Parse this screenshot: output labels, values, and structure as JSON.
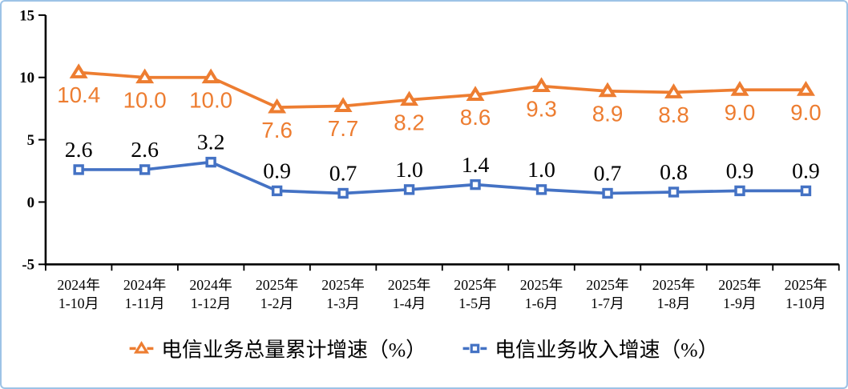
{
  "chart_data": {
    "type": "line",
    "title": "",
    "xlabel": "",
    "ylabel": "",
    "grid": false,
    "legend_position": "bottom",
    "y_axis": {
      "min": -5,
      "max": 15,
      "ticks": [
        15,
        10,
        5,
        0,
        -5
      ]
    },
    "categories": [
      {
        "line1": "2024年",
        "line2": "1-10月"
      },
      {
        "line1": "2024年",
        "line2": "1-11月"
      },
      {
        "line1": "2024年",
        "line2": "1-12月"
      },
      {
        "line1": "2025年",
        "line2": "1-2月"
      },
      {
        "line1": "2025年",
        "line2": "1-3月"
      },
      {
        "line1": "2025年",
        "line2": "1-4月"
      },
      {
        "line1": "2025年",
        "line2": "1-5月"
      },
      {
        "line1": "2025年",
        "line2": "1-6月"
      },
      {
        "line1": "2025年",
        "line2": "1-7月"
      },
      {
        "line1": "2025年",
        "line2": "1-8月"
      },
      {
        "line1": "2025年",
        "line2": "1-9月"
      },
      {
        "line1": "2025年",
        "line2": "1-10月"
      }
    ],
    "series": [
      {
        "name": "电信业务总量累计增速（%）",
        "marker": "triangle",
        "color": "#ED7D31",
        "label_color": "#ED7D31",
        "label_position": "below",
        "label_font": "sans",
        "values": [
          10.4,
          10.0,
          10.0,
          7.6,
          7.7,
          8.2,
          8.6,
          9.3,
          8.9,
          8.8,
          9.0,
          9.0
        ]
      },
      {
        "name": "电信业务收入增速（%）",
        "marker": "square",
        "color": "#4472C4",
        "label_color": "#000000",
        "label_position": "above",
        "label_font": "serif",
        "values": [
          2.6,
          2.6,
          3.2,
          0.9,
          0.7,
          1.0,
          1.4,
          1.0,
          0.7,
          0.8,
          0.9,
          0.9
        ]
      }
    ],
    "colors": {
      "frame_border": "#9DC3E6",
      "axis": "#000000",
      "background": "#FFFFFF",
      "series_total": "#ED7D31",
      "series_revenue": "#4472C4"
    }
  }
}
